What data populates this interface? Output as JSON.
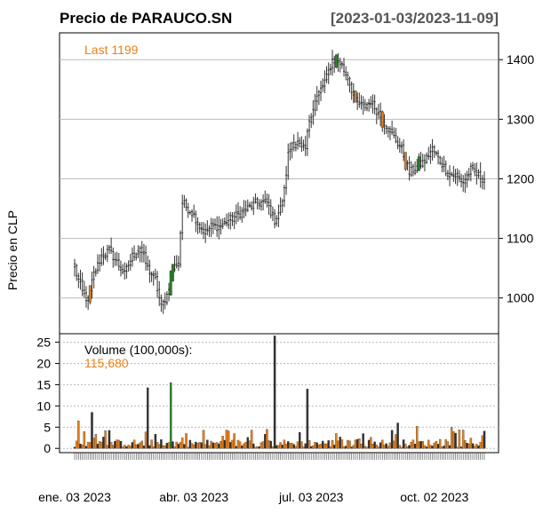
{
  "chart_data": {
    "type": "candlestick",
    "title": "Precio de PARAUCO.SN",
    "date_range": "[2023-01-03/2023-11-09]",
    "ylabel": "Precio en CLP",
    "last_label": "Last 1199",
    "volume_label": "Volume (100,000s):",
    "volume_last": "115,680",
    "price_axis": {
      "ticks": [
        1000,
        1100,
        1200,
        1300,
        1400
      ],
      "tick_labels": [
        "1000",
        "1100",
        "1200",
        "1300",
        "1400"
      ],
      "range": [
        940,
        1445
      ]
    },
    "volume_axis": {
      "ticks": [
        0,
        5,
        10,
        15,
        20,
        25
      ],
      "tick_labels": [
        "0",
        "5",
        "10",
        "15",
        "20",
        "25"
      ],
      "range": [
        -1,
        27
      ]
    },
    "x_tick_labels": [
      "ene. 03 2023",
      "abr. 03 2023",
      "jul. 03 2023",
      "oct. 02 2023"
    ],
    "n_sessions": 214,
    "x_tick_sessions": [
      0,
      62,
      123,
      187
    ],
    "colors": {
      "up": "#228B22",
      "down": "#E8801A",
      "neutral": "#333333",
      "grid": "#BBBBBB",
      "last": "#E8801A"
    },
    "close_anchors": [
      [
        0,
        1050
      ],
      [
        4,
        1010
      ],
      [
        7,
        995
      ],
      [
        10,
        1040
      ],
      [
        14,
        1070
      ],
      [
        18,
        1080
      ],
      [
        22,
        1060
      ],
      [
        26,
        1040
      ],
      [
        30,
        1070
      ],
      [
        34,
        1085
      ],
      [
        38,
        1050
      ],
      [
        42,
        1030
      ],
      [
        45,
        985
      ],
      [
        48,
        1005
      ],
      [
        51,
        1050
      ],
      [
        54,
        1060
      ],
      [
        56,
        1160
      ],
      [
        59,
        1150
      ],
      [
        62,
        1140
      ],
      [
        65,
        1120
      ],
      [
        68,
        1110
      ],
      [
        71,
        1120
      ],
      [
        75,
        1120
      ],
      [
        80,
        1130
      ],
      [
        85,
        1140
      ],
      [
        90,
        1150
      ],
      [
        95,
        1160
      ],
      [
        100,
        1160
      ],
      [
        104,
        1130
      ],
      [
        107,
        1150
      ],
      [
        109,
        1180
      ],
      [
        111,
        1240
      ],
      [
        113,
        1260
      ],
      [
        116,
        1260
      ],
      [
        118,
        1250
      ],
      [
        120,
        1250
      ],
      [
        122,
        1300
      ],
      [
        125,
        1330
      ],
      [
        128,
        1350
      ],
      [
        131,
        1370
      ],
      [
        134,
        1400
      ],
      [
        138,
        1395
      ],
      [
        142,
        1370
      ],
      [
        146,
        1330
      ],
      [
        150,
        1320
      ],
      [
        154,
        1330
      ],
      [
        158,
        1310
      ],
      [
        162,
        1290
      ],
      [
        166,
        1270
      ],
      [
        170,
        1250
      ],
      [
        174,
        1210
      ],
      [
        178,
        1220
      ],
      [
        182,
        1230
      ],
      [
        186,
        1250
      ],
      [
        190,
        1230
      ],
      [
        194,
        1210
      ],
      [
        198,
        1205
      ],
      [
        202,
        1195
      ],
      [
        206,
        1215
      ],
      [
        210,
        1205
      ],
      [
        213,
        1199
      ]
    ],
    "volume_spikes": [
      [
        2,
        6.5
      ],
      [
        9,
        8.5
      ],
      [
        38,
        14.3
      ],
      [
        50,
        15.5
      ],
      [
        104,
        26.5
      ],
      [
        121,
        14.0
      ],
      [
        83,
        3.5
      ],
      [
        117,
        3.8
      ],
      [
        100,
        4.5
      ],
      [
        136,
        3.5
      ],
      [
        150,
        3.5
      ],
      [
        168,
        6.0
      ],
      [
        178,
        5.2
      ],
      [
        196,
        5.0
      ],
      [
        212,
        3.0
      ]
    ],
    "volume_up_sessions": [
      50
    ],
    "highlight_up_sessions": [
      50,
      51,
      136,
      179
    ],
    "highlight_down_sessions": [
      8,
      146,
      160,
      172
    ]
  }
}
